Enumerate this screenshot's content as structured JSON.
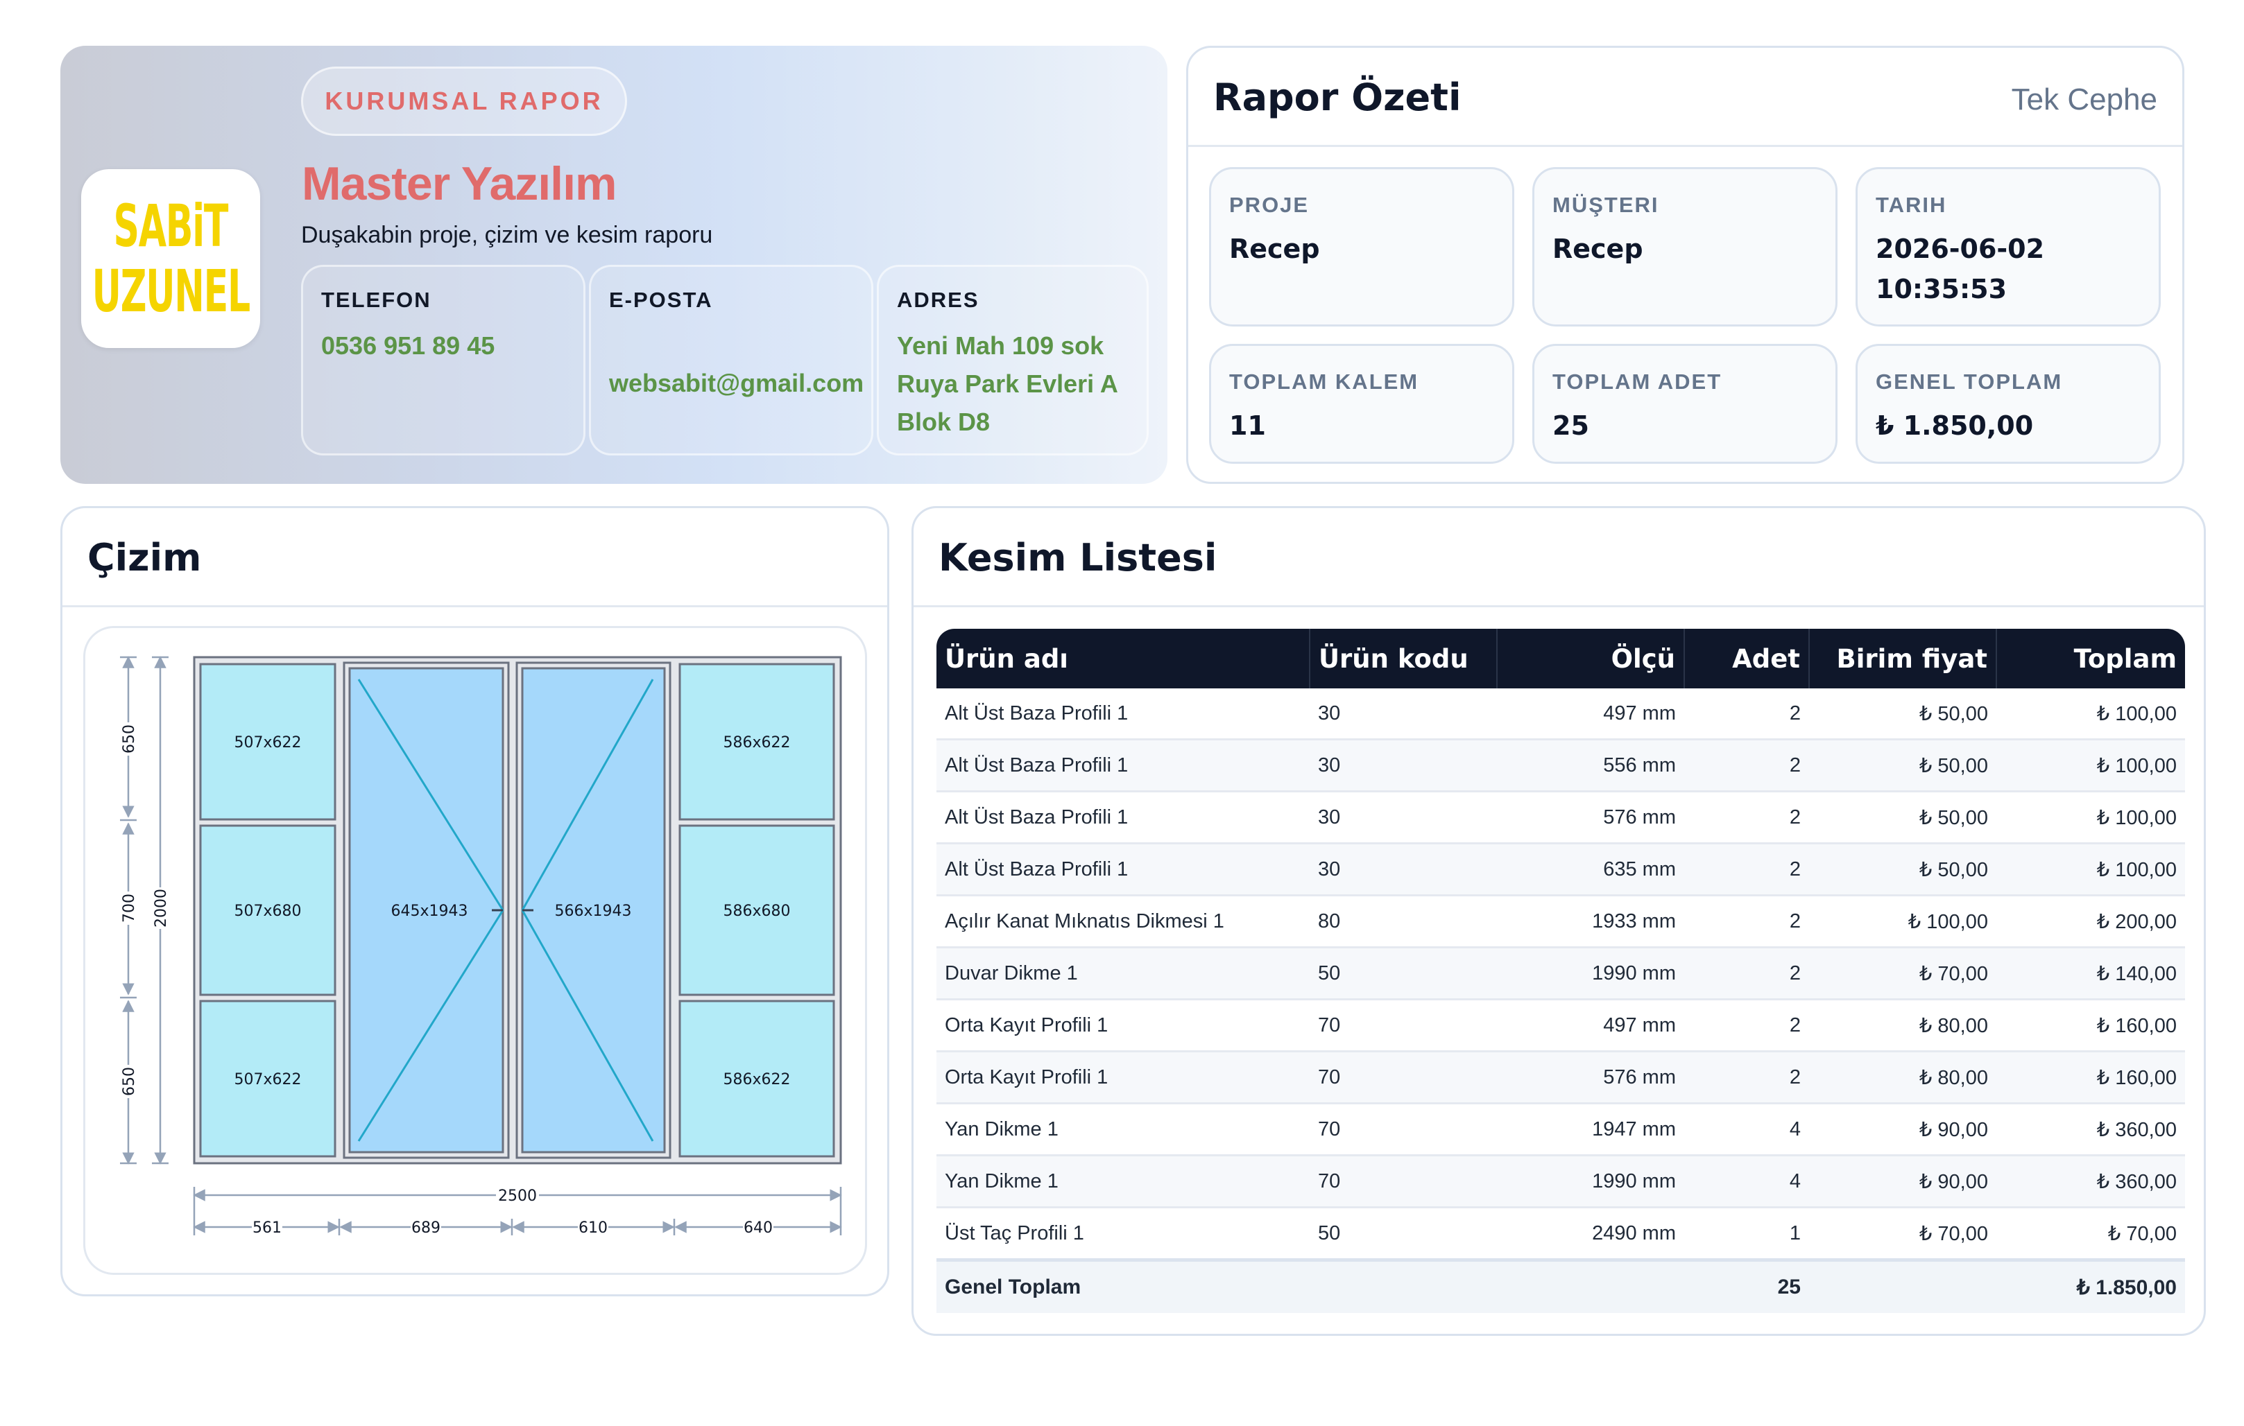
{
  "header": {
    "logo_lines": [
      "SABiT",
      "UZUNEL"
    ],
    "tag": "KURUMSAL RAPOR",
    "company": "Master Yazılım",
    "description": "Duşakabin proje, çizim ve kesim raporu",
    "contacts": [
      {
        "label": "TELEFON",
        "value": "0536 951 89 45"
      },
      {
        "label": "E-POSTA",
        "value": "websabit@gmail.com"
      },
      {
        "label": "ADRES",
        "value": "Yeni Mah 109 sok Ruya Park Evleri A Blok D8"
      }
    ]
  },
  "summary": {
    "title": "Rapor Özeti",
    "subtitle": "Tek Cephe",
    "stats": [
      {
        "label": "PROJE",
        "value": "Recep"
      },
      {
        "label": "MÜŞTERI",
        "value": "Recep"
      },
      {
        "label": "TARIH",
        "value": "2026-06-02 10:35:53"
      },
      {
        "label": "TOPLAM KALEM",
        "value": "11"
      },
      {
        "label": "TOPLAM ADET",
        "value": "25"
      },
      {
        "label": "GENEL TOPLAM",
        "value": "₺ 1.850,00"
      }
    ]
  },
  "drawing": {
    "title": "Çizim",
    "panels": {
      "left_top": "507x622",
      "left_mid": "507x680",
      "left_bot": "507x622",
      "door_left": "645x1943",
      "door_right": "566x1943",
      "right_top": "586x622",
      "right_mid": "586x680",
      "right_bot": "586x622"
    },
    "dims": {
      "h_650a": "650",
      "h_700": "700",
      "h_650b": "650",
      "h_total": "2000",
      "w_total": "2500",
      "w_561": "561",
      "w_689": "689",
      "w_610": "610",
      "w_640": "640"
    }
  },
  "cutlist": {
    "title": "Kesim Listesi",
    "columns": [
      "Ürün adı",
      "Ürün kodu",
      "Ölçü",
      "Adet",
      "Birim fiyat",
      "Toplam"
    ],
    "rows": [
      [
        "Alt Üst Baza Profili 1",
        "30",
        "497 mm",
        "2",
        "₺ 50,00",
        "₺ 100,00"
      ],
      [
        "Alt Üst Baza Profili 1",
        "30",
        "556 mm",
        "2",
        "₺ 50,00",
        "₺ 100,00"
      ],
      [
        "Alt Üst Baza Profili 1",
        "30",
        "576 mm",
        "2",
        "₺ 50,00",
        "₺ 100,00"
      ],
      [
        "Alt Üst Baza Profili 1",
        "30",
        "635 mm",
        "2",
        "₺ 50,00",
        "₺ 100,00"
      ],
      [
        "Açılır Kanat Mıknatıs Dikmesi 1",
        "80",
        "1933 mm",
        "2",
        "₺ 100,00",
        "₺ 200,00"
      ],
      [
        "Duvar Dikme 1",
        "50",
        "1990 mm",
        "2",
        "₺ 70,00",
        "₺ 140,00"
      ],
      [
        "Orta Kayıt Profili 1",
        "70",
        "497 mm",
        "2",
        "₺ 80,00",
        "₺ 160,00"
      ],
      [
        "Orta Kayıt Profili 1",
        "70",
        "576 mm",
        "2",
        "₺ 80,00",
        "₺ 160,00"
      ],
      [
        "Yan Dikme 1",
        "70",
        "1947 mm",
        "4",
        "₺ 90,00",
        "₺ 360,00"
      ],
      [
        "Yan Dikme 1",
        "70",
        "1990 mm",
        "4",
        "₺ 90,00",
        "₺ 360,00"
      ],
      [
        "Üst Taç Profili 1",
        "50",
        "2490 mm",
        "1",
        "₺ 70,00",
        "₺ 70,00"
      ]
    ],
    "footer": {
      "label": "Genel Toplam",
      "qty": "25",
      "total": "₺ 1.850,00"
    }
  }
}
